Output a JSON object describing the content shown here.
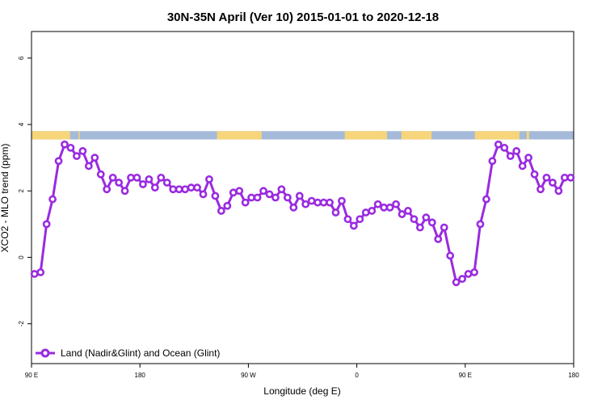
{
  "chart_data": {
    "type": "line",
    "title": "30N-35N April (Ver 10)   2015-01-01 to 2020-12-18",
    "xlabel": "Longitude (deg E)",
    "ylabel": "XCO2 - MLO trend (ppm)",
    "xlim": [
      90,
      540
    ],
    "ylim": [
      -3.2,
      6.8
    ],
    "x_ticks": [
      {
        "value": 90,
        "label": "90 E"
      },
      {
        "value": 180,
        "label": "180"
      },
      {
        "value": 270,
        "label": "90 W"
      },
      {
        "value": 360,
        "label": "0"
      },
      {
        "value": 450,
        "label": "90 E"
      },
      {
        "value": 540,
        "label": "180"
      }
    ],
    "y_ticks": [
      {
        "value": -2,
        "label": "-2"
      },
      {
        "value": 0,
        "label": "0"
      },
      {
        "value": 2,
        "label": "2"
      },
      {
        "value": 4,
        "label": "4"
      },
      {
        "value": 6,
        "label": "6"
      }
    ],
    "surface_band": {
      "y_range": [
        3.55,
        3.8
      ],
      "land_color": "#f7d57a",
      "ocean_color": "#a5b9d8",
      "land_segments": [
        [
          90,
          122
        ],
        [
          129,
          130
        ],
        [
          244,
          281
        ],
        [
          350,
          383
        ],
        [
          381,
          385
        ],
        [
          397,
          422
        ],
        [
          458,
          495
        ],
        [
          501,
          503
        ]
      ]
    },
    "series": [
      {
        "name": "Land (Nadir&Glint) and Ocean (Glint)",
        "color": "#9a2be0",
        "x": [
          92.5,
          97.5,
          102.5,
          107.5,
          112.5,
          117.5,
          122.5,
          127.5,
          132.5,
          137.5,
          142.5,
          147.5,
          152.5,
          157.5,
          162.5,
          167.5,
          172.5,
          177.5,
          182.5,
          187.5,
          192.5,
          197.5,
          202.5,
          207.5,
          212.5,
          217.5,
          222.5,
          227.5,
          232.5,
          237.5,
          242.5,
          247.5,
          252.5,
          257.5,
          262.5,
          267.5,
          272.5,
          277.5,
          282.5,
          287.5,
          292.5,
          297.5,
          302.5,
          307.5,
          312.5,
          317.5,
          322.5,
          327.5,
          332.5,
          337.5,
          342.5,
          347.5,
          352.5,
          357.5,
          362.5,
          367.5,
          372.5,
          377.5,
          382.5,
          387.5,
          392.5,
          397.5,
          402.5,
          407.5,
          412.5,
          417.5,
          422.5,
          427.5,
          432.5,
          437.5,
          442.5,
          447.5,
          452.5,
          457.5,
          462.5,
          467.5,
          472.5,
          477.5,
          482.5,
          487.5,
          492.5,
          497.5,
          502.5,
          507.5,
          512.5,
          517.5,
          522.5,
          527.5,
          532.5,
          537.5
        ],
        "y": [
          -0.5,
          -0.45,
          1.0,
          1.75,
          2.9,
          3.4,
          3.3,
          3.05,
          3.2,
          2.75,
          3.0,
          2.5,
          2.05,
          2.4,
          2.25,
          2.0,
          2.4,
          2.4,
          2.2,
          2.35,
          2.1,
          2.4,
          2.25,
          2.05,
          2.05,
          2.05,
          2.1,
          2.1,
          1.9,
          2.35,
          1.85,
          1.4,
          1.55,
          1.95,
          2.0,
          1.65,
          1.8,
          1.8,
          2.0,
          1.9,
          1.8,
          2.05,
          1.8,
          1.5,
          1.85,
          1.6,
          1.7,
          1.65,
          1.65,
          1.65,
          1.35,
          1.7,
          1.15,
          0.95,
          1.15,
          1.35,
          1.4,
          1.6,
          1.5,
          1.5,
          1.6,
          1.3,
          1.4,
          1.15,
          0.9,
          1.2,
          1.05,
          0.55,
          0.9,
          0.05,
          -0.75,
          -0.65,
          -0.5,
          -0.45,
          1.0,
          1.75,
          2.9,
          3.4,
          3.3,
          3.05,
          3.2,
          2.75,
          3.0,
          2.5,
          2.05,
          2.4,
          2.25,
          2.0,
          2.4,
          2.4
        ]
      }
    ],
    "legend": {
      "position": "bottom-left"
    }
  }
}
